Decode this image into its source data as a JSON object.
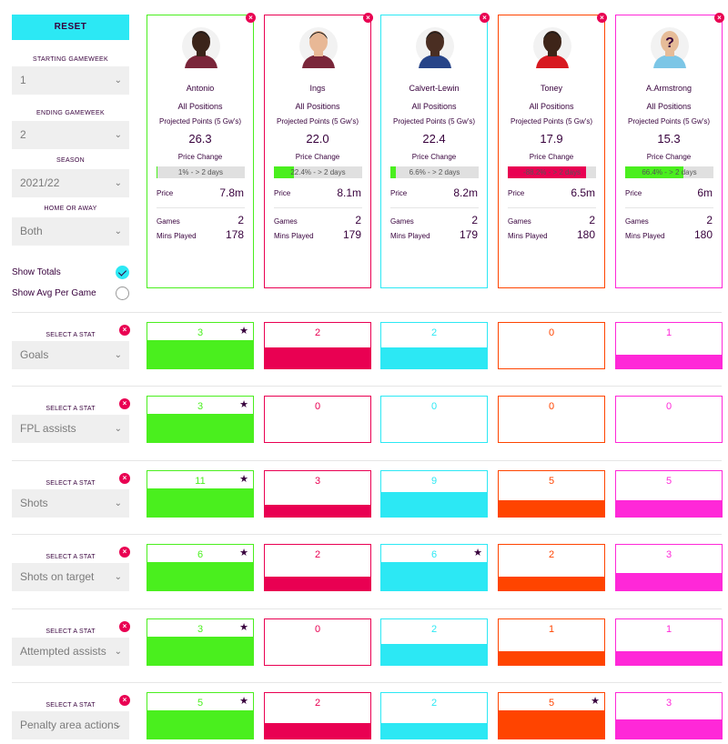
{
  "filters": {
    "reset_label": "RESET",
    "starting_gameweek_label": "STARTING GAMEWEEK",
    "starting_gameweek_value": "1",
    "ending_gameweek_label": "ENDING GAMEWEEK",
    "ending_gameweek_value": "2",
    "season_label": "SEASON",
    "season_value": "2021/22",
    "home_away_label": "HOME OR AWAY",
    "home_away_value": "Both",
    "show_totals_label": "Show Totals",
    "show_totals_checked": true,
    "show_avg_label": "Show Avg Per Game",
    "show_avg_checked": false
  },
  "labels": {
    "projected_points": "Projected Points (5 Gw's)",
    "price_change": "Price Change",
    "price": "Price",
    "games": "Games",
    "mins_played": "Mins Played",
    "select_a_stat": "SELECT A STAT"
  },
  "players": [
    {
      "name": "Antonio",
      "position": "All Positions",
      "projected_points": "26.3",
      "price_change_text": "1% - > 2 days",
      "price_change_pct": 1,
      "price": "7.8m",
      "games": "2",
      "mins": "178",
      "color": "#4aef1e",
      "bar_color": "#4aef1e",
      "avatar": "antonio-avatar",
      "skin": "#3b241a",
      "shirt": "#7a263a"
    },
    {
      "name": "Ings",
      "position": "All Positions",
      "projected_points": "22.0",
      "price_change_text": "22.4% - > 2 days",
      "price_change_pct": 22.4,
      "price": "8.1m",
      "games": "2",
      "mins": "179",
      "color": "#e90052",
      "bar_color": "#4aef1e",
      "avatar": "ings-avatar",
      "skin": "#e8b896",
      "shirt": "#7a263a"
    },
    {
      "name": "Calvert-Lewin",
      "position": "All Positions",
      "projected_points": "22.4",
      "price_change_text": "6.6% - > 2 days",
      "price_change_pct": 6.6,
      "price": "8.2m",
      "games": "2",
      "mins": "179",
      "color": "#2ce8f4",
      "bar_color": "#4aef1e",
      "avatar": "calvert-lewin-avatar",
      "skin": "#4a2e22",
      "shirt": "#274488"
    },
    {
      "name": "Toney",
      "position": "All Positions",
      "projected_points": "17.9",
      "price_change_text": "-88.2% - > 2 days",
      "price_change_pct": 88.2,
      "price": "6.5m",
      "games": "2",
      "mins": "180",
      "color": "#ff4400",
      "bar_color": "#e90052",
      "avatar": "toney-avatar",
      "skin": "#3e2519",
      "shirt": "#d71920"
    },
    {
      "name": "A.Armstrong",
      "position": "All Positions",
      "projected_points": "15.3",
      "price_change_text": "66.4% - > 2 days",
      "price_change_pct": 66.4,
      "price": "6m",
      "games": "2",
      "mins": "180",
      "color": "#ff28d8",
      "bar_color": "#4aef1e",
      "avatar": "unknown-player-avatar",
      "skin": "#e6bc98",
      "shirt": "#7cc6e6"
    }
  ],
  "stats": [
    {
      "name": "Goals",
      "values": [
        "3",
        "2",
        "2",
        "0",
        "1"
      ],
      "fill": [
        1.0,
        0.67,
        0.67,
        0.0,
        0.33
      ],
      "star": [
        true,
        false,
        false,
        false,
        false
      ]
    },
    {
      "name": "FPL assists",
      "values": [
        "3",
        "0",
        "0",
        "0",
        "0"
      ],
      "fill": [
        1.0,
        0.0,
        0.0,
        0.0,
        0.0
      ],
      "star": [
        true,
        false,
        false,
        false,
        false
      ]
    },
    {
      "name": "Shots",
      "values": [
        "11",
        "3",
        "9",
        "5",
        "5"
      ],
      "fill": [
        1.0,
        0.27,
        0.82,
        0.45,
        0.45
      ],
      "star": [
        true,
        false,
        false,
        false,
        false
      ]
    },
    {
      "name": "Shots on target",
      "values": [
        "6",
        "2",
        "6",
        "2",
        "3"
      ],
      "fill": [
        1.0,
        0.33,
        1.0,
        0.33,
        0.5
      ],
      "star": [
        true,
        false,
        true,
        false,
        false
      ]
    },
    {
      "name": "Attempted assists",
      "values": [
        "3",
        "0",
        "2",
        "1",
        "1"
      ],
      "fill": [
        1.0,
        0.0,
        0.67,
        0.33,
        0.33
      ],
      "star": [
        true,
        false,
        false,
        false,
        false
      ]
    },
    {
      "name": "Penalty area actions",
      "values": [
        "5",
        "2",
        "2",
        "5",
        "3"
      ],
      "fill": [
        1.0,
        0.4,
        0.4,
        1.0,
        0.6
      ],
      "star": [
        true,
        false,
        false,
        true,
        false
      ]
    }
  ]
}
